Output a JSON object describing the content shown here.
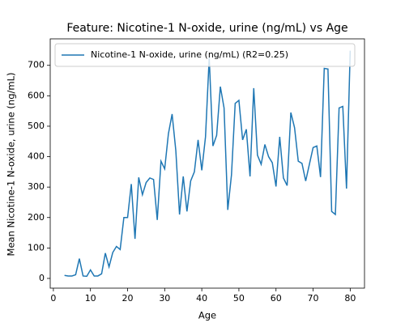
{
  "chart_data": {
    "type": "line",
    "title": "Feature: Nicotine-1 N-oxide, urine (ng/mL) vs Age",
    "x_label": "Age",
    "y_label": "Mean Nicotine-1 N-oxide, urine (ng/mL)",
    "x": [
      3,
      4,
      5,
      6,
      7,
      8,
      9,
      10,
      11,
      12,
      13,
      14,
      15,
      16,
      17,
      18,
      19,
      20,
      21,
      22,
      23,
      24,
      25,
      26,
      27,
      28,
      29,
      30,
      31,
      32,
      33,
      34,
      35,
      36,
      37,
      38,
      39,
      40,
      41,
      42,
      43,
      44,
      45,
      46,
      47,
      48,
      49,
      50,
      51,
      52,
      53,
      54,
      55,
      56,
      57,
      58,
      59,
      60,
      61,
      62,
      63,
      64,
      65,
      66,
      67,
      68,
      69,
      70,
      71,
      72,
      73,
      74,
      75,
      76,
      77,
      78,
      79,
      80
    ],
    "series": [
      {
        "name": "Nicotine-1 N-oxide, urine (ng/mL) (R2=0.25)",
        "color": "#1f77b4",
        "values": [
          10,
          8,
          8,
          12,
          65,
          8,
          7,
          28,
          8,
          8,
          15,
          83,
          38,
          85,
          105,
          95,
          200,
          200,
          310,
          130,
          332,
          275,
          315,
          330,
          325,
          192,
          385,
          360,
          475,
          540,
          420,
          210,
          335,
          220,
          320,
          350,
          455,
          355,
          465,
          725,
          435,
          470,
          630,
          560,
          225,
          340,
          575,
          585,
          455,
          490,
          335,
          625,
          405,
          375,
          440,
          400,
          380,
          302,
          465,
          330,
          305,
          545,
          495,
          385,
          378,
          320,
          375,
          430,
          435,
          333,
          690,
          688,
          220,
          210,
          560,
          565,
          295,
          748
        ]
      }
    ],
    "xlim": [
      -0.85,
      83.85
    ],
    "ylim": [
      -32,
      787
    ],
    "xticks": [
      0,
      10,
      20,
      30,
      40,
      50,
      60,
      70,
      80
    ],
    "yticks": [
      0,
      100,
      200,
      300,
      400,
      500,
      600,
      700
    ],
    "legend": "upper left"
  }
}
